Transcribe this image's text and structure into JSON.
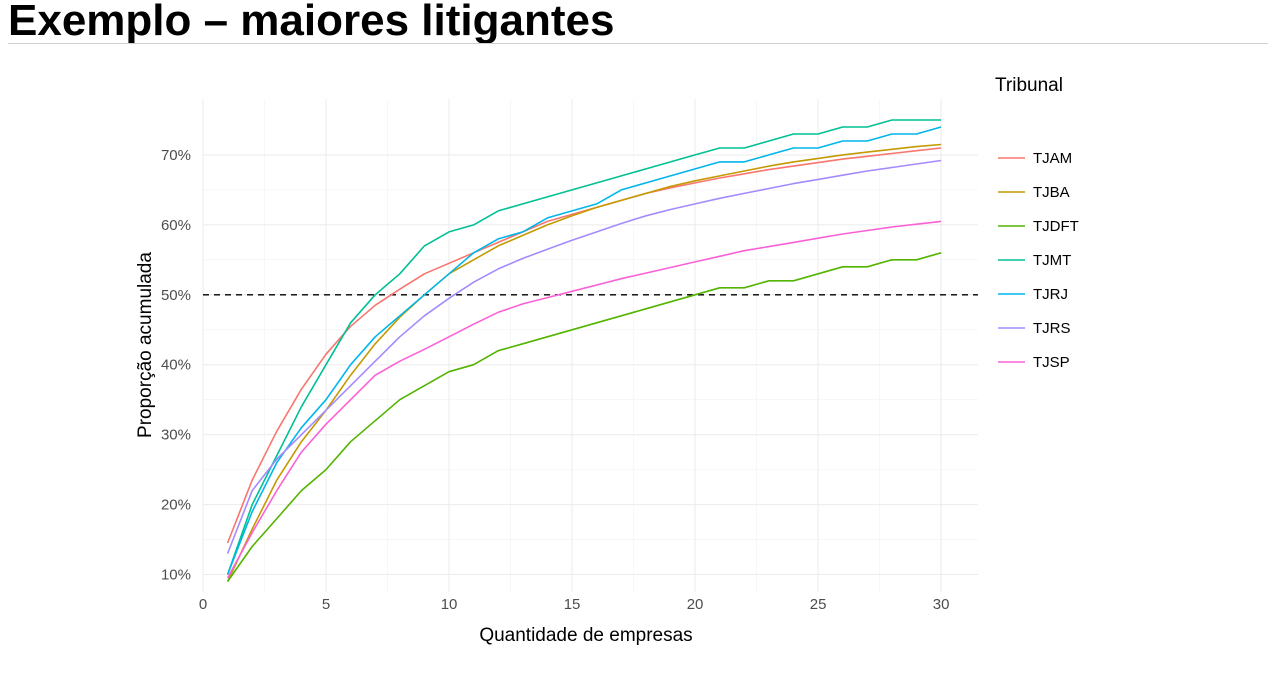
{
  "slide": {
    "title": "Exemplo – maiores litigantes"
  },
  "chart_data": {
    "type": "line",
    "title": "",
    "xlabel": "Quantidade de empresas",
    "ylabel": "Proporção acumulada",
    "xlim": [
      0,
      31.5
    ],
    "ylim": [
      0.075,
      0.78
    ],
    "xticks": [
      0,
      5,
      10,
      15,
      20,
      25,
      30
    ],
    "xtick_labels": [
      "0",
      "5",
      "10",
      "15",
      "20",
      "25",
      "30"
    ],
    "yticks": [
      0.1,
      0.2,
      0.3,
      0.4,
      0.5,
      0.6,
      0.7
    ],
    "ytick_labels": [
      "10%",
      "20%",
      "30%",
      "40%",
      "50%",
      "60%",
      "70%"
    ],
    "reference_line": {
      "y": 0.5,
      "style": "dashed"
    },
    "legend": {
      "title": "Tribunal",
      "position": "right"
    },
    "x": [
      1,
      2,
      3,
      4,
      5,
      6,
      7,
      8,
      9,
      10,
      11,
      12,
      13,
      14,
      15,
      16,
      17,
      18,
      19,
      20,
      21,
      22,
      23,
      24,
      25,
      26,
      27,
      28,
      29,
      30
    ],
    "series": [
      {
        "name": "TJAM",
        "color": "#F8766D",
        "values": [
          0.145,
          0.235,
          0.305,
          0.365,
          0.415,
          0.455,
          0.485,
          0.508,
          0.53,
          0.545,
          0.56,
          0.575,
          0.59,
          0.605,
          0.615,
          0.625,
          0.635,
          0.645,
          0.653,
          0.66,
          0.667,
          0.673,
          0.679,
          0.684,
          0.689,
          0.694,
          0.698,
          0.702,
          0.706,
          0.71
        ]
      },
      {
        "name": "TJBA",
        "color": "#C49A00",
        "values": [
          0.09,
          0.165,
          0.235,
          0.29,
          0.335,
          0.385,
          0.43,
          0.468,
          0.5,
          0.53,
          0.55,
          0.57,
          0.585,
          0.6,
          0.613,
          0.625,
          0.635,
          0.645,
          0.655,
          0.663,
          0.67,
          0.677,
          0.684,
          0.69,
          0.695,
          0.7,
          0.704,
          0.708,
          0.712,
          0.715
        ]
      },
      {
        "name": "TJDFT",
        "color": "#53B400",
        "values": [
          0.09,
          0.14,
          0.18,
          0.22,
          0.25,
          0.29,
          0.32,
          0.35,
          0.37,
          0.39,
          0.4,
          0.42,
          0.43,
          0.44,
          0.45,
          0.46,
          0.47,
          0.48,
          0.49,
          0.5,
          0.51,
          0.51,
          0.52,
          0.52,
          0.53,
          0.54,
          0.54,
          0.55,
          0.55,
          0.56
        ]
      },
      {
        "name": "TJMT",
        "color": "#00C094",
        "values": [
          0.1,
          0.2,
          0.27,
          0.34,
          0.4,
          0.46,
          0.5,
          0.53,
          0.57,
          0.59,
          0.6,
          0.62,
          0.63,
          0.64,
          0.65,
          0.66,
          0.67,
          0.68,
          0.69,
          0.7,
          0.71,
          0.71,
          0.72,
          0.73,
          0.73,
          0.74,
          0.74,
          0.75,
          0.75,
          0.75
        ]
      },
      {
        "name": "TJRJ",
        "color": "#00B6EB",
        "values": [
          0.1,
          0.19,
          0.26,
          0.31,
          0.35,
          0.4,
          0.44,
          0.47,
          0.5,
          0.53,
          0.56,
          0.58,
          0.59,
          0.61,
          0.62,
          0.63,
          0.65,
          0.66,
          0.67,
          0.68,
          0.69,
          0.69,
          0.7,
          0.71,
          0.71,
          0.72,
          0.72,
          0.73,
          0.73,
          0.74
        ]
      },
      {
        "name": "TJRS",
        "color": "#A58AFF",
        "values": [
          0.13,
          0.22,
          0.265,
          0.3,
          0.335,
          0.37,
          0.405,
          0.44,
          0.47,
          0.495,
          0.518,
          0.537,
          0.552,
          0.565,
          0.578,
          0.59,
          0.602,
          0.613,
          0.622,
          0.63,
          0.638,
          0.645,
          0.652,
          0.659,
          0.665,
          0.671,
          0.677,
          0.682,
          0.687,
          0.692
        ]
      },
      {
        "name": "TJSP",
        "color": "#FB61D7",
        "values": [
          0.095,
          0.16,
          0.22,
          0.275,
          0.315,
          0.35,
          0.385,
          0.405,
          0.422,
          0.44,
          0.458,
          0.475,
          0.487,
          0.496,
          0.505,
          0.514,
          0.523,
          0.531,
          0.539,
          0.547,
          0.555,
          0.563,
          0.569,
          0.575,
          0.581,
          0.587,
          0.592,
          0.597,
          0.601,
          0.605
        ]
      }
    ]
  }
}
